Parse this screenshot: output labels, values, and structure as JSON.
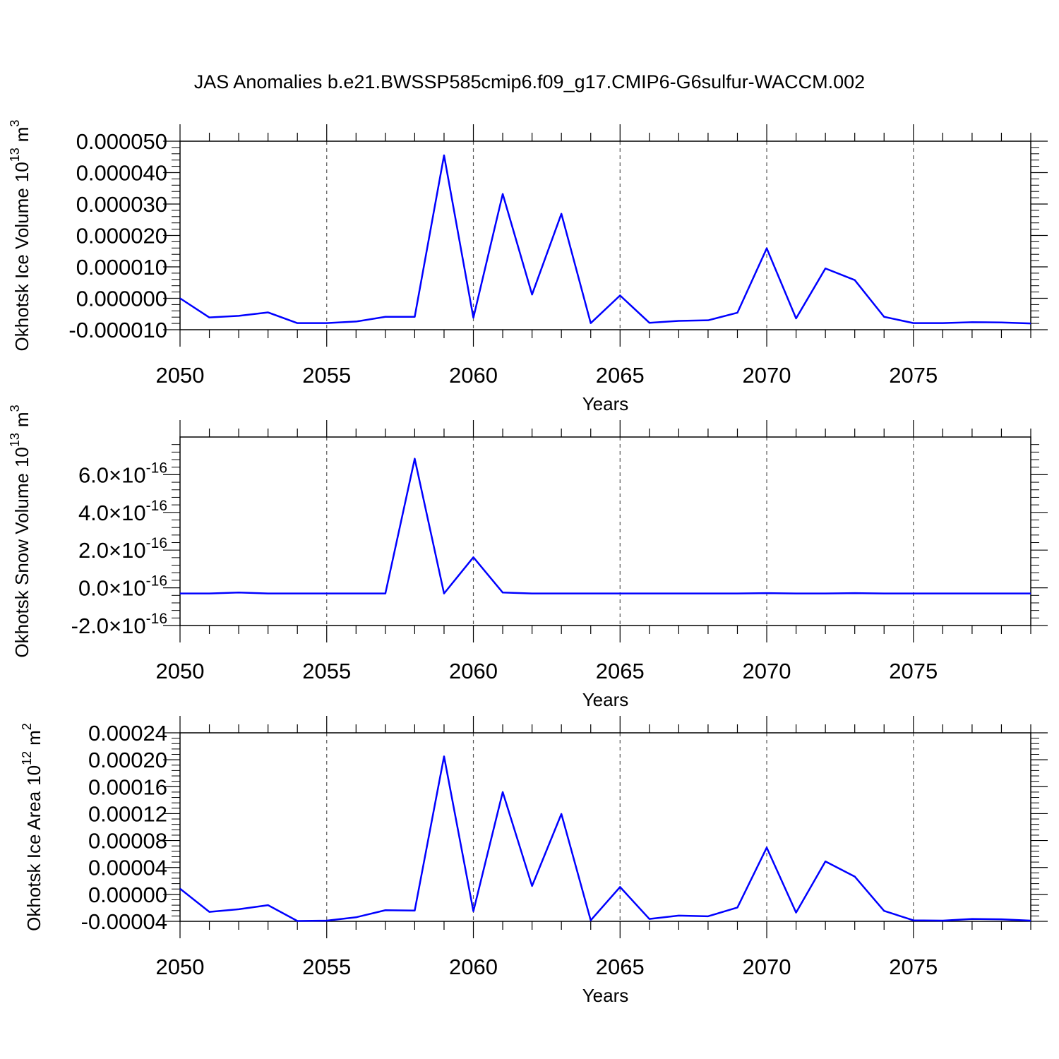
{
  "title": "JAS Anomalies b.e21.BWSSP585cmip6.f09_g17.CMIP6-G6sulfur-WACCM.002",
  "colors": {
    "line": "#0000ff",
    "axis": "#000000",
    "grid": "#555555"
  },
  "chart_data": [
    {
      "type": "line",
      "ylabel": "Okhotsk Ice Volume",
      "yunit_base": "10",
      "yunit_exp": "13",
      "yunit_tail": "m",
      "yunit_tail_exp": "3",
      "xlabel": "Years",
      "xlim": [
        2050,
        2079
      ],
      "ylim": [
        -1e-05,
        5e-05
      ],
      "x_tick_labels": [
        "2050",
        "2055",
        "2060",
        "2065",
        "2070",
        "2075"
      ],
      "y_ticks": [
        {
          "value": -1e-05,
          "label": "-0.000010"
        },
        {
          "value": 0.0,
          "label": "0.000000"
        },
        {
          "value": 1e-05,
          "label": "0.000010"
        },
        {
          "value": 2e-05,
          "label": "0.000020"
        },
        {
          "value": 3e-05,
          "label": "0.000030"
        },
        {
          "value": 4e-05,
          "label": "0.000040"
        },
        {
          "value": 5e-05,
          "label": "0.000050"
        }
      ],
      "x": [
        2050,
        2051,
        2052,
        2053,
        2054,
        2055,
        2056,
        2057,
        2058,
        2059,
        2060,
        2061,
        2062,
        2063,
        2064,
        2065,
        2066,
        2067,
        2068,
        2069,
        2070,
        2071,
        2072,
        2073,
        2074,
        2075,
        2076,
        2077,
        2078,
        2079
      ],
      "values": [
        0.0,
        -6.1e-06,
        -5.6e-06,
        -4.5e-06,
        -7.9e-06,
        -7.9e-06,
        -7.4e-06,
        -5.9e-06,
        -5.9e-06,
        4.55e-05,
        -6.2e-06,
        3.32e-05,
        1.2e-06,
        2.69e-05,
        -7.9e-06,
        9e-07,
        -7.8e-06,
        -7.2e-06,
        -7e-06,
        -4.6e-06,
        1.59e-05,
        -6.4e-06,
        9.5e-06,
        5.8e-06,
        -5.9e-06,
        -7.9e-06,
        -7.9e-06,
        -7.6e-06,
        -7.7e-06,
        -8e-06
      ]
    },
    {
      "type": "line",
      "ylabel": "Okhotsk Snow Volume",
      "yunit_base": "10",
      "yunit_exp": "13",
      "yunit_tail": "m",
      "yunit_tail_exp": "3",
      "xlabel": "Years",
      "xlim": [
        2050,
        2079
      ],
      "ylim": [
        -2e-16,
        8e-16
      ],
      "x_tick_labels": [
        "2050",
        "2055",
        "2060",
        "2065",
        "2070",
        "2075"
      ],
      "y_ticks": [
        {
          "value": -2e-16,
          "label": "-2.0",
          "exp": "-16"
        },
        {
          "value": 0.0,
          "label": "0.0",
          "exp": "-16"
        },
        {
          "value": 2e-16,
          "label": "2.0",
          "exp": "-16"
        },
        {
          "value": 4e-16,
          "label": "4.0",
          "exp": "-16"
        },
        {
          "value": 6e-16,
          "label": "6.0",
          "exp": "-16"
        }
      ],
      "x": [
        2050,
        2051,
        2052,
        2053,
        2054,
        2055,
        2056,
        2057,
        2058,
        2059,
        2060,
        2061,
        2062,
        2063,
        2064,
        2065,
        2066,
        2067,
        2068,
        2069,
        2070,
        2071,
        2072,
        2073,
        2074,
        2075,
        2076,
        2077,
        2078,
        2079
      ],
      "values": [
        -3e-17,
        -3e-17,
        -2.5e-17,
        -3e-17,
        -3e-17,
        -3e-17,
        -3e-17,
        -3e-17,
        6.85e-16,
        -3e-17,
        1.62e-16,
        -2.5e-17,
        -3e-17,
        -3e-17,
        -3e-17,
        -3e-17,
        -3e-17,
        -3e-17,
        -3e-17,
        -3e-17,
        -2.8e-17,
        -3e-17,
        -3e-17,
        -2.8e-17,
        -3e-17,
        -3e-17,
        -3e-17,
        -3e-17,
        -3e-17,
        -3e-17
      ]
    },
    {
      "type": "line",
      "ylabel": "Okhotsk Ice Area",
      "yunit_base": "10",
      "yunit_exp": "12",
      "yunit_tail": "m",
      "yunit_tail_exp": "2",
      "xlabel": "Years",
      "xlim": [
        2050,
        2079
      ],
      "ylim": [
        -4e-05,
        0.00024
      ],
      "x_tick_labels": [
        "2050",
        "2055",
        "2060",
        "2065",
        "2070",
        "2075"
      ],
      "y_ticks": [
        {
          "value": -4e-05,
          "label": "-0.00004"
        },
        {
          "value": 0.0,
          "label": "0.00000"
        },
        {
          "value": 4e-05,
          "label": "0.00004"
        },
        {
          "value": 8e-05,
          "label": "0.00008"
        },
        {
          "value": 0.00012,
          "label": "0.00012"
        },
        {
          "value": 0.00016,
          "label": "0.00016"
        },
        {
          "value": 0.0002,
          "label": "0.00020"
        },
        {
          "value": 0.00024,
          "label": "0.00024"
        }
      ],
      "x": [
        2050,
        2051,
        2052,
        2053,
        2054,
        2055,
        2056,
        2057,
        2058,
        2059,
        2060,
        2061,
        2062,
        2063,
        2064,
        2065,
        2066,
        2067,
        2068,
        2069,
        2070,
        2071,
        2072,
        2073,
        2074,
        2075,
        2076,
        2077,
        2078,
        2079
      ],
      "values": [
        8.5e-06,
        -2.6e-05,
        -2.2e-05,
        -1.6e-05,
        -3.95e-05,
        -3.9e-05,
        -3.4e-05,
        -2.35e-05,
        -2.4e-05,
        0.000205,
        -2.5e-05,
        0.000152,
        1.25e-05,
        0.0001195,
        -3.85e-05,
        1.1e-05,
        -3.65e-05,
        -3.15e-05,
        -3.25e-05,
        -1.95e-05,
        6.95e-05,
        -2.7e-05,
        4.9e-05,
        2.65e-05,
        -2.45e-05,
        -3.85e-05,
        -3.9e-05,
        -3.65e-05,
        -3.7e-05,
        -3.9e-05
      ]
    }
  ]
}
